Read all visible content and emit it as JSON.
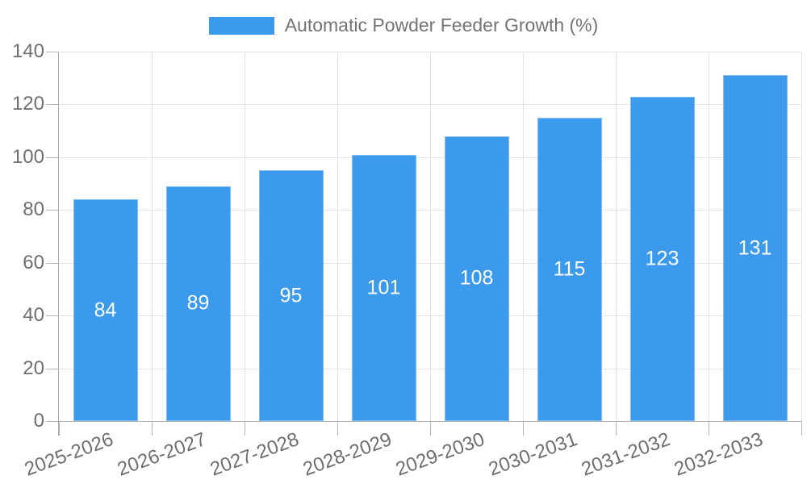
{
  "legend": {
    "label": "Automatic Powder Feeder Growth (%)"
  },
  "colors": {
    "bar": "#3b9aec",
    "grid": "#e4e4e4",
    "axis": "#a8a8a8",
    "text": "#6e6e6e",
    "value_label": "#ffffff",
    "background": "#ffffff"
  },
  "chart_data": {
    "type": "bar",
    "title": "Automatic Powder Feeder Growth (%)",
    "categories": [
      "2025-2026",
      "2026-2027",
      "2027-2028",
      "2028-2029",
      "2029-2030",
      "2030-2031",
      "2031-2032",
      "2032-2033"
    ],
    "values": [
      84,
      89,
      95,
      101,
      108,
      115,
      123,
      131
    ],
    "value_labels": [
      "84",
      "89",
      "95",
      "101",
      "108",
      "115",
      "123",
      "131"
    ],
    "yticks": [
      0,
      20,
      40,
      60,
      80,
      100,
      120,
      140
    ],
    "ylim": [
      0,
      140
    ],
    "xlabel": "",
    "ylabel": "",
    "grid": true,
    "legend_position": "top",
    "x_tick_rotation_deg": -20,
    "value_label_position": "center"
  }
}
